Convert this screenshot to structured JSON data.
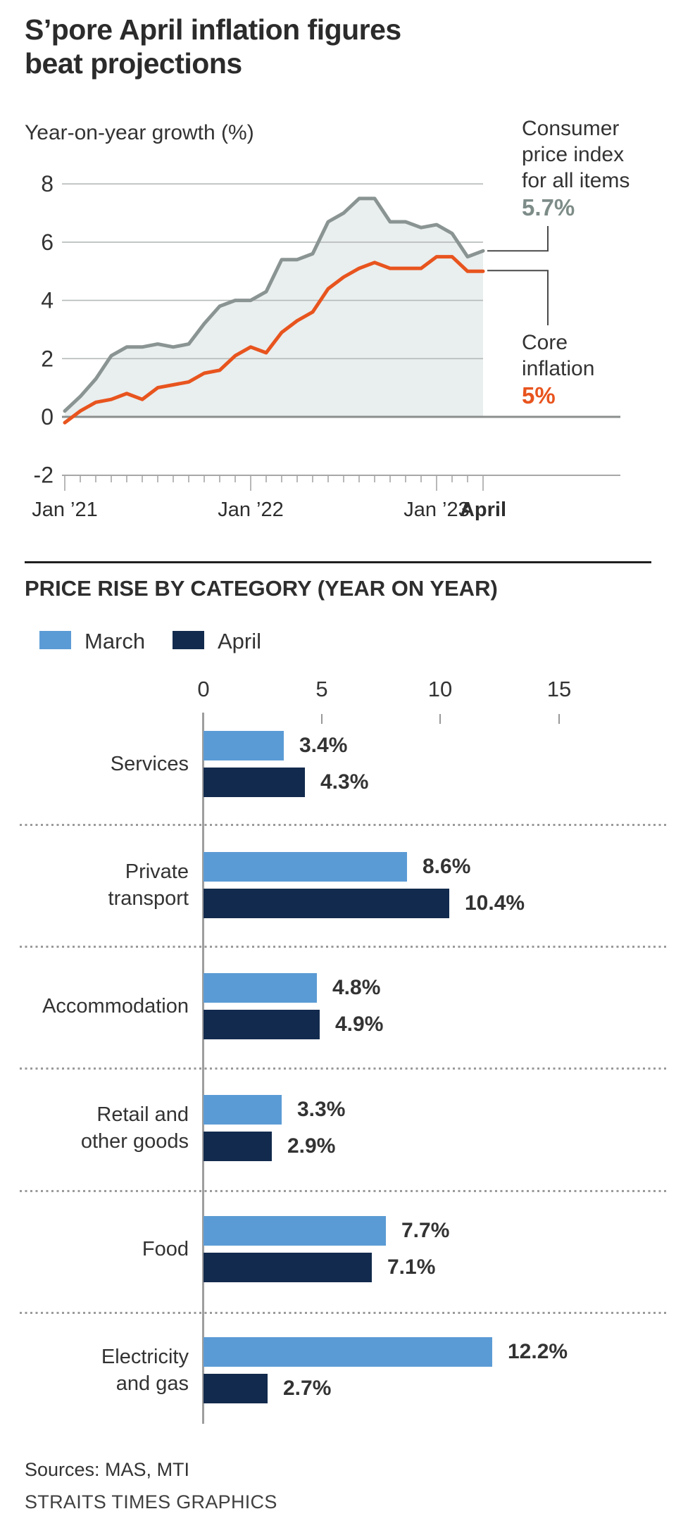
{
  "header": {
    "title": "S’pore April inflation figures beat projections",
    "title_lines": [
      "S’pore April inflation figures",
      "beat projections"
    ]
  },
  "line_chart": {
    "axis_label": "Year-on-year growth (%)",
    "x_tick_labels": [
      {
        "label": "Jan ’21",
        "month": 0,
        "bold": false
      },
      {
        "label": "Jan ’22",
        "month": 12,
        "bold": false
      },
      {
        "label": "Jan ’23",
        "month": 24,
        "bold": false
      },
      {
        "label": "April",
        "month": 27,
        "bold": true
      }
    ],
    "cpi_annotation": {
      "lines": [
        "Consumer",
        "price index",
        "for all items"
      ],
      "value": "5.7%",
      "value_color": "#7d8c88"
    },
    "core_annotation": {
      "lines": [
        "Core",
        "inflation"
      ],
      "value": "5%",
      "value_color": "#e8541e"
    },
    "colors": {
      "cpi_line": "#8a9492",
      "core_line": "#e8541e",
      "area_fill": "#e9eeee",
      "gridline": "#b5bab9",
      "zero_line": "#8a8f8e",
      "axis_ruler": "#a7a7a7",
      "connector": "#4a4a4a"
    }
  },
  "chart_data": [
    {
      "type": "line",
      "title": "Year-on-year growth (%)",
      "x_start": "Jan 2021",
      "x_end": "Apr 2023",
      "x_unit": "month",
      "ylim": [
        -2,
        8
      ],
      "y_ticks": [
        8,
        6,
        4,
        2,
        0,
        -2
      ],
      "grid": true,
      "series": [
        {
          "name": "Consumer price index for all items",
          "color": "#8a9492",
          "end_label": "5.7%",
          "values": [
            0.2,
            0.7,
            1.3,
            2.1,
            2.4,
            2.4,
            2.5,
            2.4,
            2.5,
            3.2,
            3.8,
            4.0,
            4.0,
            4.3,
            5.4,
            5.4,
            5.6,
            6.7,
            7.0,
            7.5,
            7.5,
            6.7,
            6.7,
            6.5,
            6.6,
            6.3,
            5.5,
            5.7
          ]
        },
        {
          "name": "Core inflation",
          "color": "#e8541e",
          "end_label": "5%",
          "values": [
            -0.2,
            0.2,
            0.5,
            0.6,
            0.8,
            0.6,
            1.0,
            1.1,
            1.2,
            1.5,
            1.6,
            2.1,
            2.4,
            2.2,
            2.9,
            3.3,
            3.6,
            4.4,
            4.8,
            5.1,
            5.3,
            5.1,
            5.1,
            5.1,
            5.5,
            5.5,
            5.0,
            5.0
          ]
        }
      ]
    },
    {
      "type": "bar",
      "title": "PRICE RISE BY CATEGORY (YEAR ON YEAR)",
      "orientation": "horizontal",
      "xlim": [
        0,
        15
      ],
      "x_ticks": [
        0,
        5,
        10,
        15
      ],
      "series_names": [
        "March",
        "April"
      ],
      "categories": [
        {
          "label": "Services",
          "label_lines": [
            "Services"
          ],
          "march": 3.4,
          "april": 4.3,
          "march_label": "3.4%",
          "april_label": "4.3%"
        },
        {
          "label": "Private transport",
          "label_lines": [
            "Private",
            "transport"
          ],
          "march": 8.6,
          "april": 10.4,
          "march_label": "8.6%",
          "april_label": "10.4%"
        },
        {
          "label": "Accommodation",
          "label_lines": [
            "Accommodation"
          ],
          "march": 4.8,
          "april": 4.9,
          "march_label": "4.8%",
          "april_label": "4.9%"
        },
        {
          "label": "Retail and other goods",
          "label_lines": [
            "Retail and",
            "other goods"
          ],
          "march": 3.3,
          "april": 2.9,
          "march_label": "3.3%",
          "april_label": "2.9%"
        },
        {
          "label": "Food",
          "label_lines": [
            "Food"
          ],
          "march": 7.7,
          "april": 7.1,
          "march_label": "7.7%",
          "april_label": "7.1%"
        },
        {
          "label": "Electricity and gas",
          "label_lines": [
            "Electricity",
            "and gas"
          ],
          "march": 12.2,
          "april": 2.7,
          "march_label": "12.2%",
          "april_label": "2.7%"
        }
      ]
    }
  ],
  "bar_chart": {
    "section_title": "PRICE RISE BY CATEGORY (YEAR ON YEAR)",
    "legend": [
      {
        "label": "March",
        "color": "#5b9bd5"
      },
      {
        "label": "April",
        "color": "#122a4d"
      }
    ],
    "x_tick_labels": [
      "0",
      "5",
      "10",
      "15"
    ]
  },
  "footer": {
    "sources": "Sources: MAS, MTI",
    "credit": "STRAITS TIMES GRAPHICS"
  }
}
